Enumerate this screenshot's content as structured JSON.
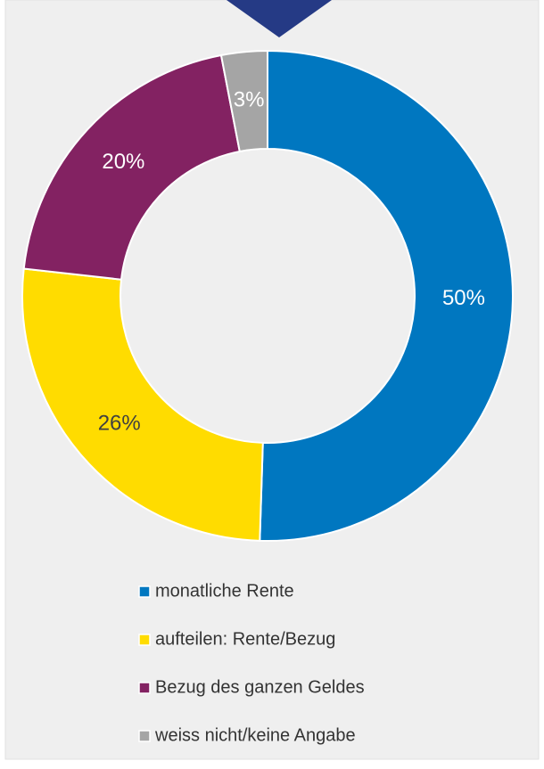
{
  "chart_data": {
    "type": "donut",
    "categories": [
      "monatliche Rente",
      "aufteilen: Rente/Bezug",
      "Bezug des ganzen Geldes",
      "weiss nicht/keine Angabe"
    ],
    "values": [
      50,
      26,
      20,
      3
    ],
    "value_labels": [
      "50%",
      "26%",
      "20%",
      "3%"
    ],
    "colors": [
      "#0077c0",
      "#ffdc00",
      "#832262",
      "#a5a5a5"
    ],
    "legend": "bottom"
  }
}
